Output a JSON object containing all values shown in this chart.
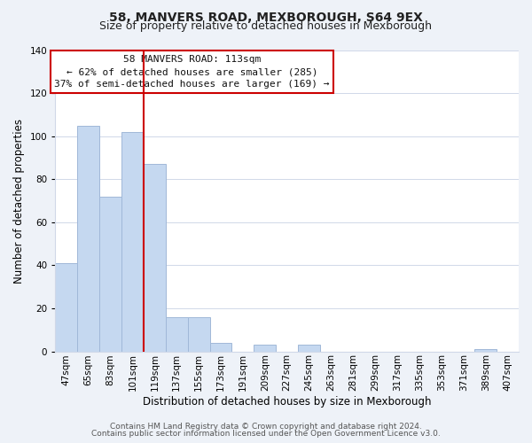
{
  "title": "58, MANVERS ROAD, MEXBOROUGH, S64 9EX",
  "subtitle": "Size of property relative to detached houses in Mexborough",
  "xlabel": "Distribution of detached houses by size in Mexborough",
  "ylabel": "Number of detached properties",
  "bar_labels": [
    "47sqm",
    "65sqm",
    "83sqm",
    "101sqm",
    "119sqm",
    "137sqm",
    "155sqm",
    "173sqm",
    "191sqm",
    "209sqm",
    "227sqm",
    "245sqm",
    "263sqm",
    "281sqm",
    "299sqm",
    "317sqm",
    "335sqm",
    "353sqm",
    "371sqm",
    "389sqm",
    "407sqm"
  ],
  "bar_values": [
    41,
    105,
    72,
    102,
    87,
    16,
    16,
    4,
    0,
    3,
    0,
    3,
    0,
    0,
    0,
    0,
    0,
    0,
    0,
    1,
    0
  ],
  "bar_color": "#c5d8f0",
  "bar_edge_color": "#a0b8d8",
  "ylim": [
    0,
    140
  ],
  "yticks": [
    0,
    20,
    40,
    60,
    80,
    100,
    120,
    140
  ],
  "vline_color": "#cc0000",
  "vline_position": 3.5,
  "annotation_title": "58 MANVERS ROAD: 113sqm",
  "annotation_line1": "← 62% of detached houses are smaller (285)",
  "annotation_line2": "37% of semi-detached houses are larger (169) →",
  "annotation_box_color": "#ffffff",
  "annotation_box_edge": "#cc0000",
  "footer1": "Contains HM Land Registry data © Crown copyright and database right 2024.",
  "footer2": "Contains public sector information licensed under the Open Government Licence v3.0.",
  "background_color": "#eef2f8",
  "plot_bg_color": "#ffffff",
  "grid_color": "#d0d8e8",
  "title_fontsize": 10,
  "subtitle_fontsize": 9,
  "axis_label_fontsize": 8.5,
  "tick_fontsize": 7.5,
  "footer_fontsize": 6.5
}
